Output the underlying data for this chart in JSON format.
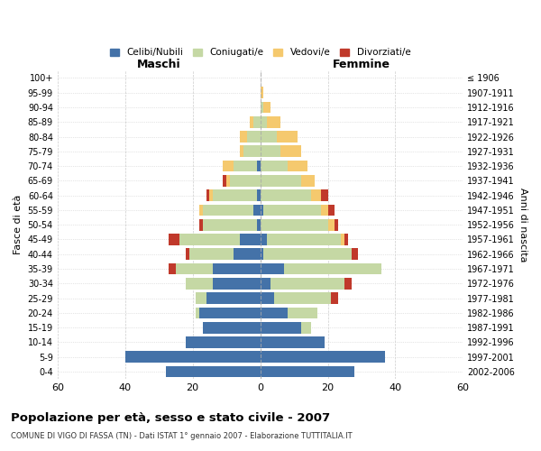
{
  "age_groups": [
    "0-4",
    "5-9",
    "10-14",
    "15-19",
    "20-24",
    "25-29",
    "30-34",
    "35-39",
    "40-44",
    "45-49",
    "50-54",
    "55-59",
    "60-64",
    "65-69",
    "70-74",
    "75-79",
    "80-84",
    "85-89",
    "90-94",
    "95-99",
    "100+"
  ],
  "birth_years": [
    "2002-2006",
    "1997-2001",
    "1992-1996",
    "1987-1991",
    "1982-1986",
    "1977-1981",
    "1972-1976",
    "1967-1971",
    "1962-1966",
    "1957-1961",
    "1952-1956",
    "1947-1951",
    "1942-1946",
    "1937-1941",
    "1932-1936",
    "1927-1931",
    "1922-1926",
    "1917-1921",
    "1912-1916",
    "1907-1911",
    "≤ 1906"
  ],
  "male": {
    "celibi": [
      28,
      40,
      22,
      17,
      18,
      16,
      14,
      14,
      8,
      6,
      1,
      2,
      1,
      0,
      1,
      0,
      0,
      0,
      0,
      0,
      0
    ],
    "coniugati": [
      0,
      0,
      0,
      0,
      1,
      3,
      8,
      11,
      13,
      18,
      16,
      15,
      13,
      9,
      7,
      5,
      4,
      2,
      0,
      0,
      0
    ],
    "vedovi": [
      0,
      0,
      0,
      0,
      0,
      0,
      0,
      0,
      0,
      0,
      0,
      1,
      1,
      1,
      3,
      1,
      2,
      1,
      0,
      0,
      0
    ],
    "divorziati": [
      0,
      0,
      0,
      0,
      0,
      0,
      0,
      2,
      1,
      3,
      1,
      0,
      1,
      1,
      0,
      0,
      0,
      0,
      0,
      0,
      0
    ]
  },
  "female": {
    "nubili": [
      28,
      37,
      19,
      12,
      8,
      4,
      3,
      7,
      1,
      2,
      0,
      1,
      0,
      0,
      0,
      0,
      0,
      0,
      0,
      0,
      0
    ],
    "coniugate": [
      0,
      0,
      0,
      3,
      9,
      17,
      22,
      29,
      26,
      22,
      20,
      17,
      15,
      12,
      8,
      6,
      5,
      2,
      1,
      0,
      0
    ],
    "vedove": [
      0,
      0,
      0,
      0,
      0,
      0,
      0,
      0,
      0,
      1,
      2,
      2,
      3,
      4,
      6,
      6,
      6,
      4,
      2,
      1,
      0
    ],
    "divorziate": [
      0,
      0,
      0,
      0,
      0,
      2,
      2,
      0,
      2,
      1,
      1,
      2,
      2,
      0,
      0,
      0,
      0,
      0,
      0,
      0,
      0
    ]
  },
  "colors": {
    "celibi": "#4472a8",
    "coniugati": "#c5d8a4",
    "vedovi": "#f5c96e",
    "divorziati": "#c0392b"
  },
  "xlim": 60,
  "title": "Popolazione per età, sesso e stato civile - 2007",
  "subtitle": "COMUNE DI VIGO DI FASSA (TN) - Dati ISTAT 1° gennaio 2007 - Elaborazione TUTTITALIA.IT",
  "ylabel_left": "Fasce di età",
  "ylabel_right": "Anni di nascita",
  "legend_labels": [
    "Celibi/Nubili",
    "Coniugati/e",
    "Vedovi/e",
    "Divorziati/e"
  ]
}
